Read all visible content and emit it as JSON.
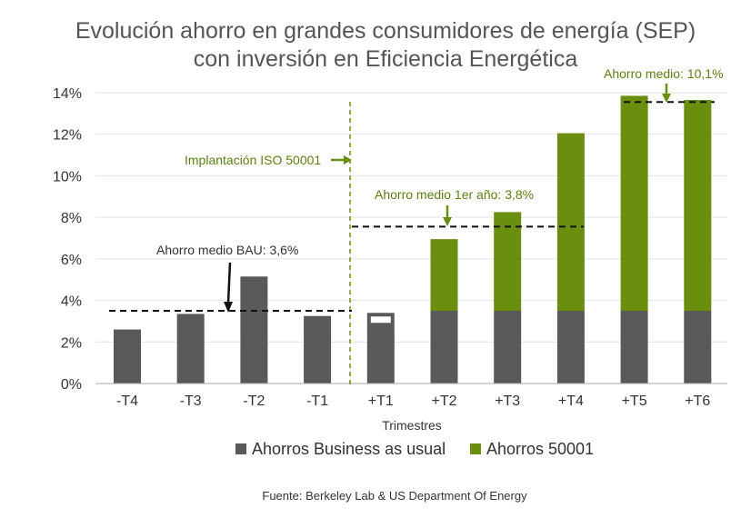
{
  "chart_data": {
    "type": "bar",
    "stacked": true,
    "title_lines": [
      "Evolución ahorro en grandes consumidores de energía (SEP)",
      "con inversión en Eficiencia Energética"
    ],
    "xlabel": "Trimestres",
    "ylabel": "",
    "ylim": [
      0,
      14
    ],
    "yticks": [
      "0%",
      "2%",
      "4%",
      "6%",
      "8%",
      "10%",
      "12%",
      "14%"
    ],
    "categories": [
      "-T4",
      "-T3",
      "-T2",
      "-T1",
      "+T1",
      "+T2",
      "+T3",
      "+T4",
      "+T5",
      "+T6"
    ],
    "series": [
      {
        "name": "Ahorros Business as usual",
        "color": "#595959",
        "values": [
          2.6,
          3.35,
          5.15,
          3.25,
          3.4,
          3.5,
          3.5,
          3.5,
          3.5,
          3.5
        ]
      },
      {
        "name": "Ahorros 50001",
        "color": "#6a8f0f",
        "values": [
          0,
          0,
          0,
          0,
          0,
          3.45,
          4.75,
          8.55,
          10.35,
          10.15
        ]
      }
    ],
    "legend_position": "bottom",
    "grid": true,
    "annotations": {
      "bau_label": "Ahorro medio BAU: 3,6%",
      "bau_level": 3.5,
      "iso_label": "Implantación ISO 50001",
      "first_year_label": "Ahorro medio 1er año: 3,8%",
      "first_year_level": 7.55,
      "mean_label": "Ahorro medio: 10,1%",
      "mean_level": 13.55
    },
    "source": "Fuente: Berkeley Lab & US Department Of Energy"
  }
}
